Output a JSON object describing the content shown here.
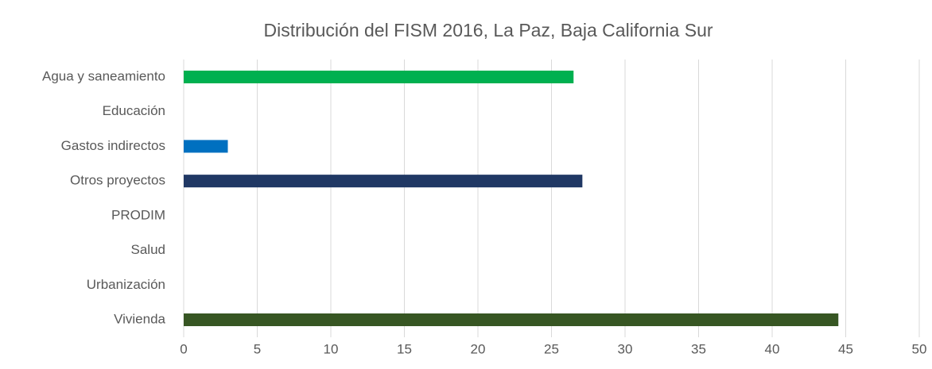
{
  "chart_data": {
    "type": "hbar",
    "title": "Distribución del FISM 2016, La Paz, Baja California Sur",
    "categories": [
      "Agua y saneamiento",
      "Educación",
      "Gastos indirectos",
      "Otros proyectos",
      "PRODIM",
      "Salud",
      "Urbanización",
      "Vivienda"
    ],
    "values": [
      26.5,
      0,
      3,
      27.1,
      0,
      0,
      0,
      44.5
    ],
    "colors": [
      "#00b050",
      null,
      "#0070c0",
      "#203864",
      null,
      null,
      null,
      "#375623"
    ],
    "xlim": [
      0,
      50
    ],
    "xticks": [
      0,
      5,
      10,
      15,
      20,
      25,
      30,
      35,
      40,
      45,
      50
    ],
    "grid": true
  }
}
